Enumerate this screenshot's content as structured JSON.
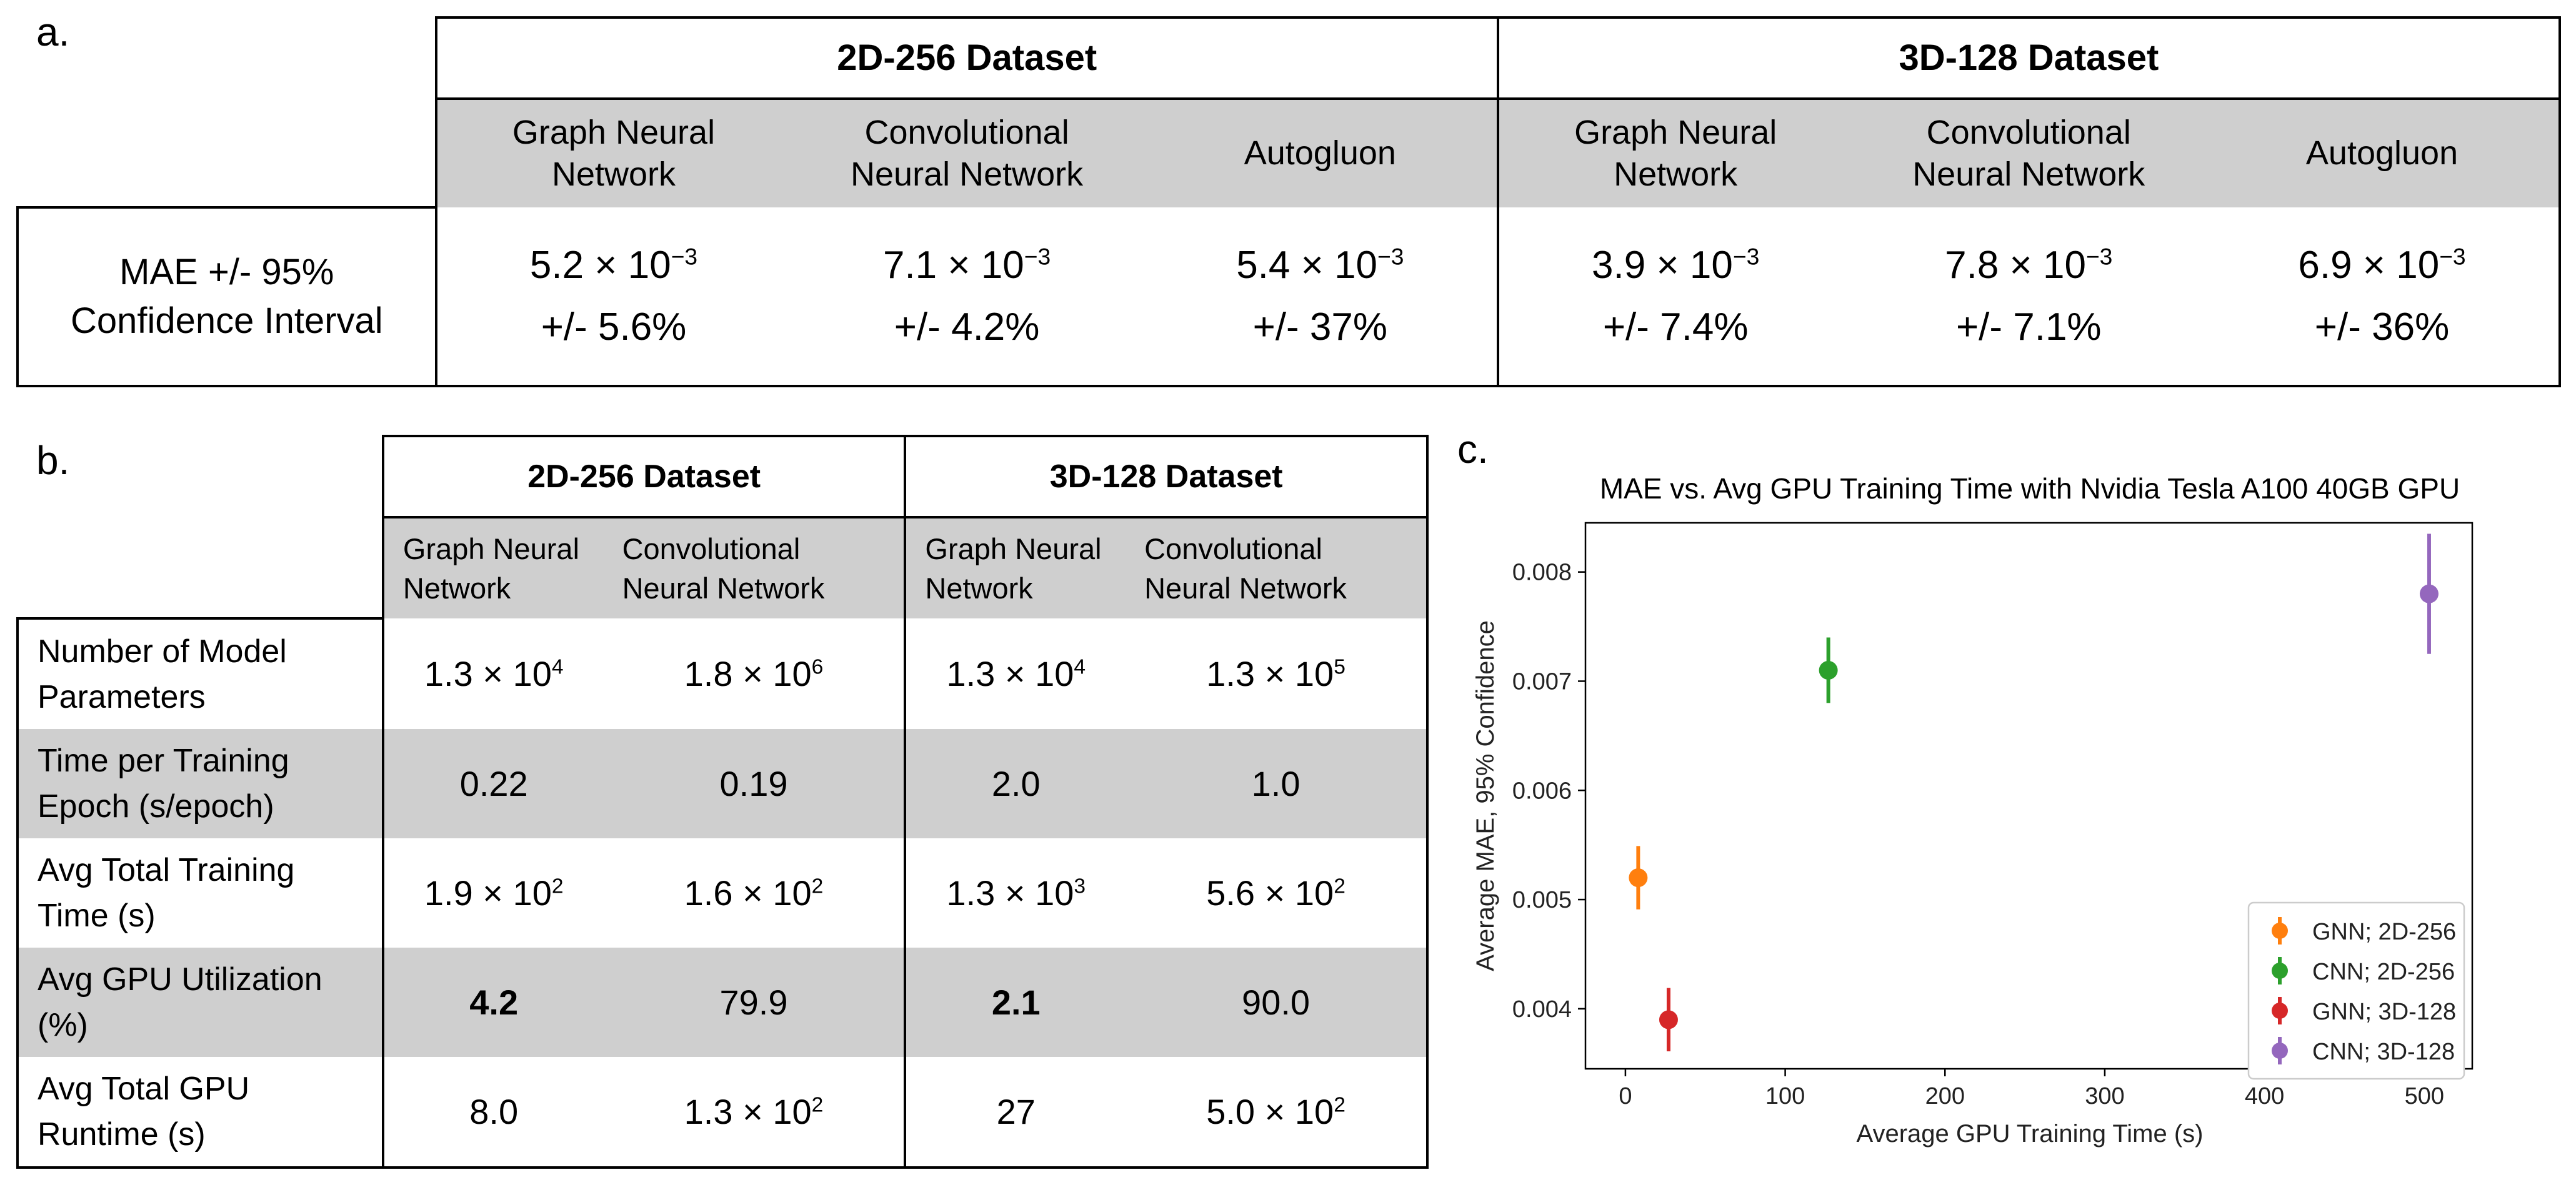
{
  "panel_labels": {
    "a": "a.",
    "b": "b.",
    "c": "c."
  },
  "table_a": {
    "groups": [
      "2D-256 Dataset",
      "3D-128 Dataset"
    ],
    "models": [
      [
        "Graph Neural",
        "Network"
      ],
      [
        "Convolutional",
        "Neural Network"
      ],
      [
        "Autogluon"
      ],
      [
        "Graph Neural",
        "Network"
      ],
      [
        "Convolutional",
        "Neural Network"
      ],
      [
        "Autogluon"
      ]
    ],
    "row_label": [
      "MAE +/- 95%",
      "Confidence Interval"
    ],
    "values": [
      {
        "mantissa": "5.2",
        "exp": "−3",
        "ci": "+/- 5.6%"
      },
      {
        "mantissa": "7.1",
        "exp": "−3",
        "ci": "+/- 4.2%"
      },
      {
        "mantissa": "5.4",
        "exp": "−3",
        "ci": "+/- 37%"
      },
      {
        "mantissa": "3.9",
        "exp": "−3",
        "ci": "+/- 7.4%"
      },
      {
        "mantissa": "7.8",
        "exp": "−3",
        "ci": "+/- 7.1%"
      },
      {
        "mantissa": "6.9",
        "exp": "−3",
        "ci": "+/- 36%"
      }
    ]
  },
  "table_b": {
    "groups": [
      "2D-256 Dataset",
      "3D-128 Dataset"
    ],
    "models": [
      [
        "Graph Neural",
        "Network"
      ],
      [
        "Convolutional",
        "Neural Network"
      ],
      [
        "Graph Neural",
        "Network"
      ],
      [
        "Convolutional",
        "Neural Network"
      ]
    ],
    "rows": [
      {
        "label": [
          "Number of Model",
          "Parameters"
        ],
        "gray": false,
        "cells": [
          {
            "m": "1.3",
            "e": "4"
          },
          {
            "m": "1.8",
            "e": "6"
          },
          {
            "m": "1.3",
            "e": "4"
          },
          {
            "m": "1.3",
            "e": "5"
          }
        ]
      },
      {
        "label": [
          "Time per Training",
          "Epoch (s/epoch)"
        ],
        "gray": true,
        "cells": [
          {
            "m": "0.22"
          },
          {
            "m": "0.19"
          },
          {
            "m": "2.0"
          },
          {
            "m": "1.0"
          }
        ]
      },
      {
        "label": [
          "Avg Total Training",
          "Time (s)"
        ],
        "gray": false,
        "cells": [
          {
            "m": "1.9",
            "e": "2"
          },
          {
            "m": "1.6",
            "e": "2"
          },
          {
            "m": "1.3",
            "e": "3"
          },
          {
            "m": "5.6",
            "e": "2"
          }
        ]
      },
      {
        "label": [
          "Avg GPU Utilization",
          "(%)"
        ],
        "gray": true,
        "cells": [
          {
            "m": "4.2",
            "bold": true
          },
          {
            "m": "79.9"
          },
          {
            "m": "2.1",
            "bold": true
          },
          {
            "m": "90.0"
          }
        ]
      },
      {
        "label": [
          "Avg Total GPU",
          "Runtime (s)"
        ],
        "gray": false,
        "cells": [
          {
            "m": "8.0"
          },
          {
            "m": "1.3",
            "e": "2"
          },
          {
            "m": "27"
          },
          {
            "m": "5.0",
            "e": "2"
          }
        ]
      }
    ]
  },
  "chart_data": {
    "type": "scatter",
    "title": "MAE vs. Avg GPU Training Time with Nvidia Tesla A100 40GB GPU",
    "xlabel": "Average GPU Training Time (s)",
    "ylabel": "Average MAE, 95% Confidence",
    "xlim": [
      -25,
      530
    ],
    "ylim": [
      0.00345,
      0.00845
    ],
    "xticks": [
      0,
      100,
      200,
      300,
      400,
      500
    ],
    "yticks": [
      0.004,
      0.005,
      0.006,
      0.007,
      0.008
    ],
    "ytick_labels": [
      "0.004",
      "0.005",
      "0.006",
      "0.007",
      "0.008"
    ],
    "legend_position": "lower-right",
    "grid": false,
    "series": [
      {
        "name": "GNN; 2D-256",
        "color": "#ff7f0e",
        "x": 8.0,
        "y": 0.0052,
        "err": 0.00029
      },
      {
        "name": "CNN; 2D-256",
        "color": "#2ca02c",
        "x": 127,
        "y": 0.0071,
        "err": 0.0003
      },
      {
        "name": "GNN; 3D-128",
        "color": "#d62728",
        "x": 27,
        "y": 0.0039,
        "err": 0.00029
      },
      {
        "name": "CNN; 3D-128",
        "color": "#9467bd",
        "x": 503,
        "y": 0.0078,
        "err": 0.00055
      }
    ]
  }
}
